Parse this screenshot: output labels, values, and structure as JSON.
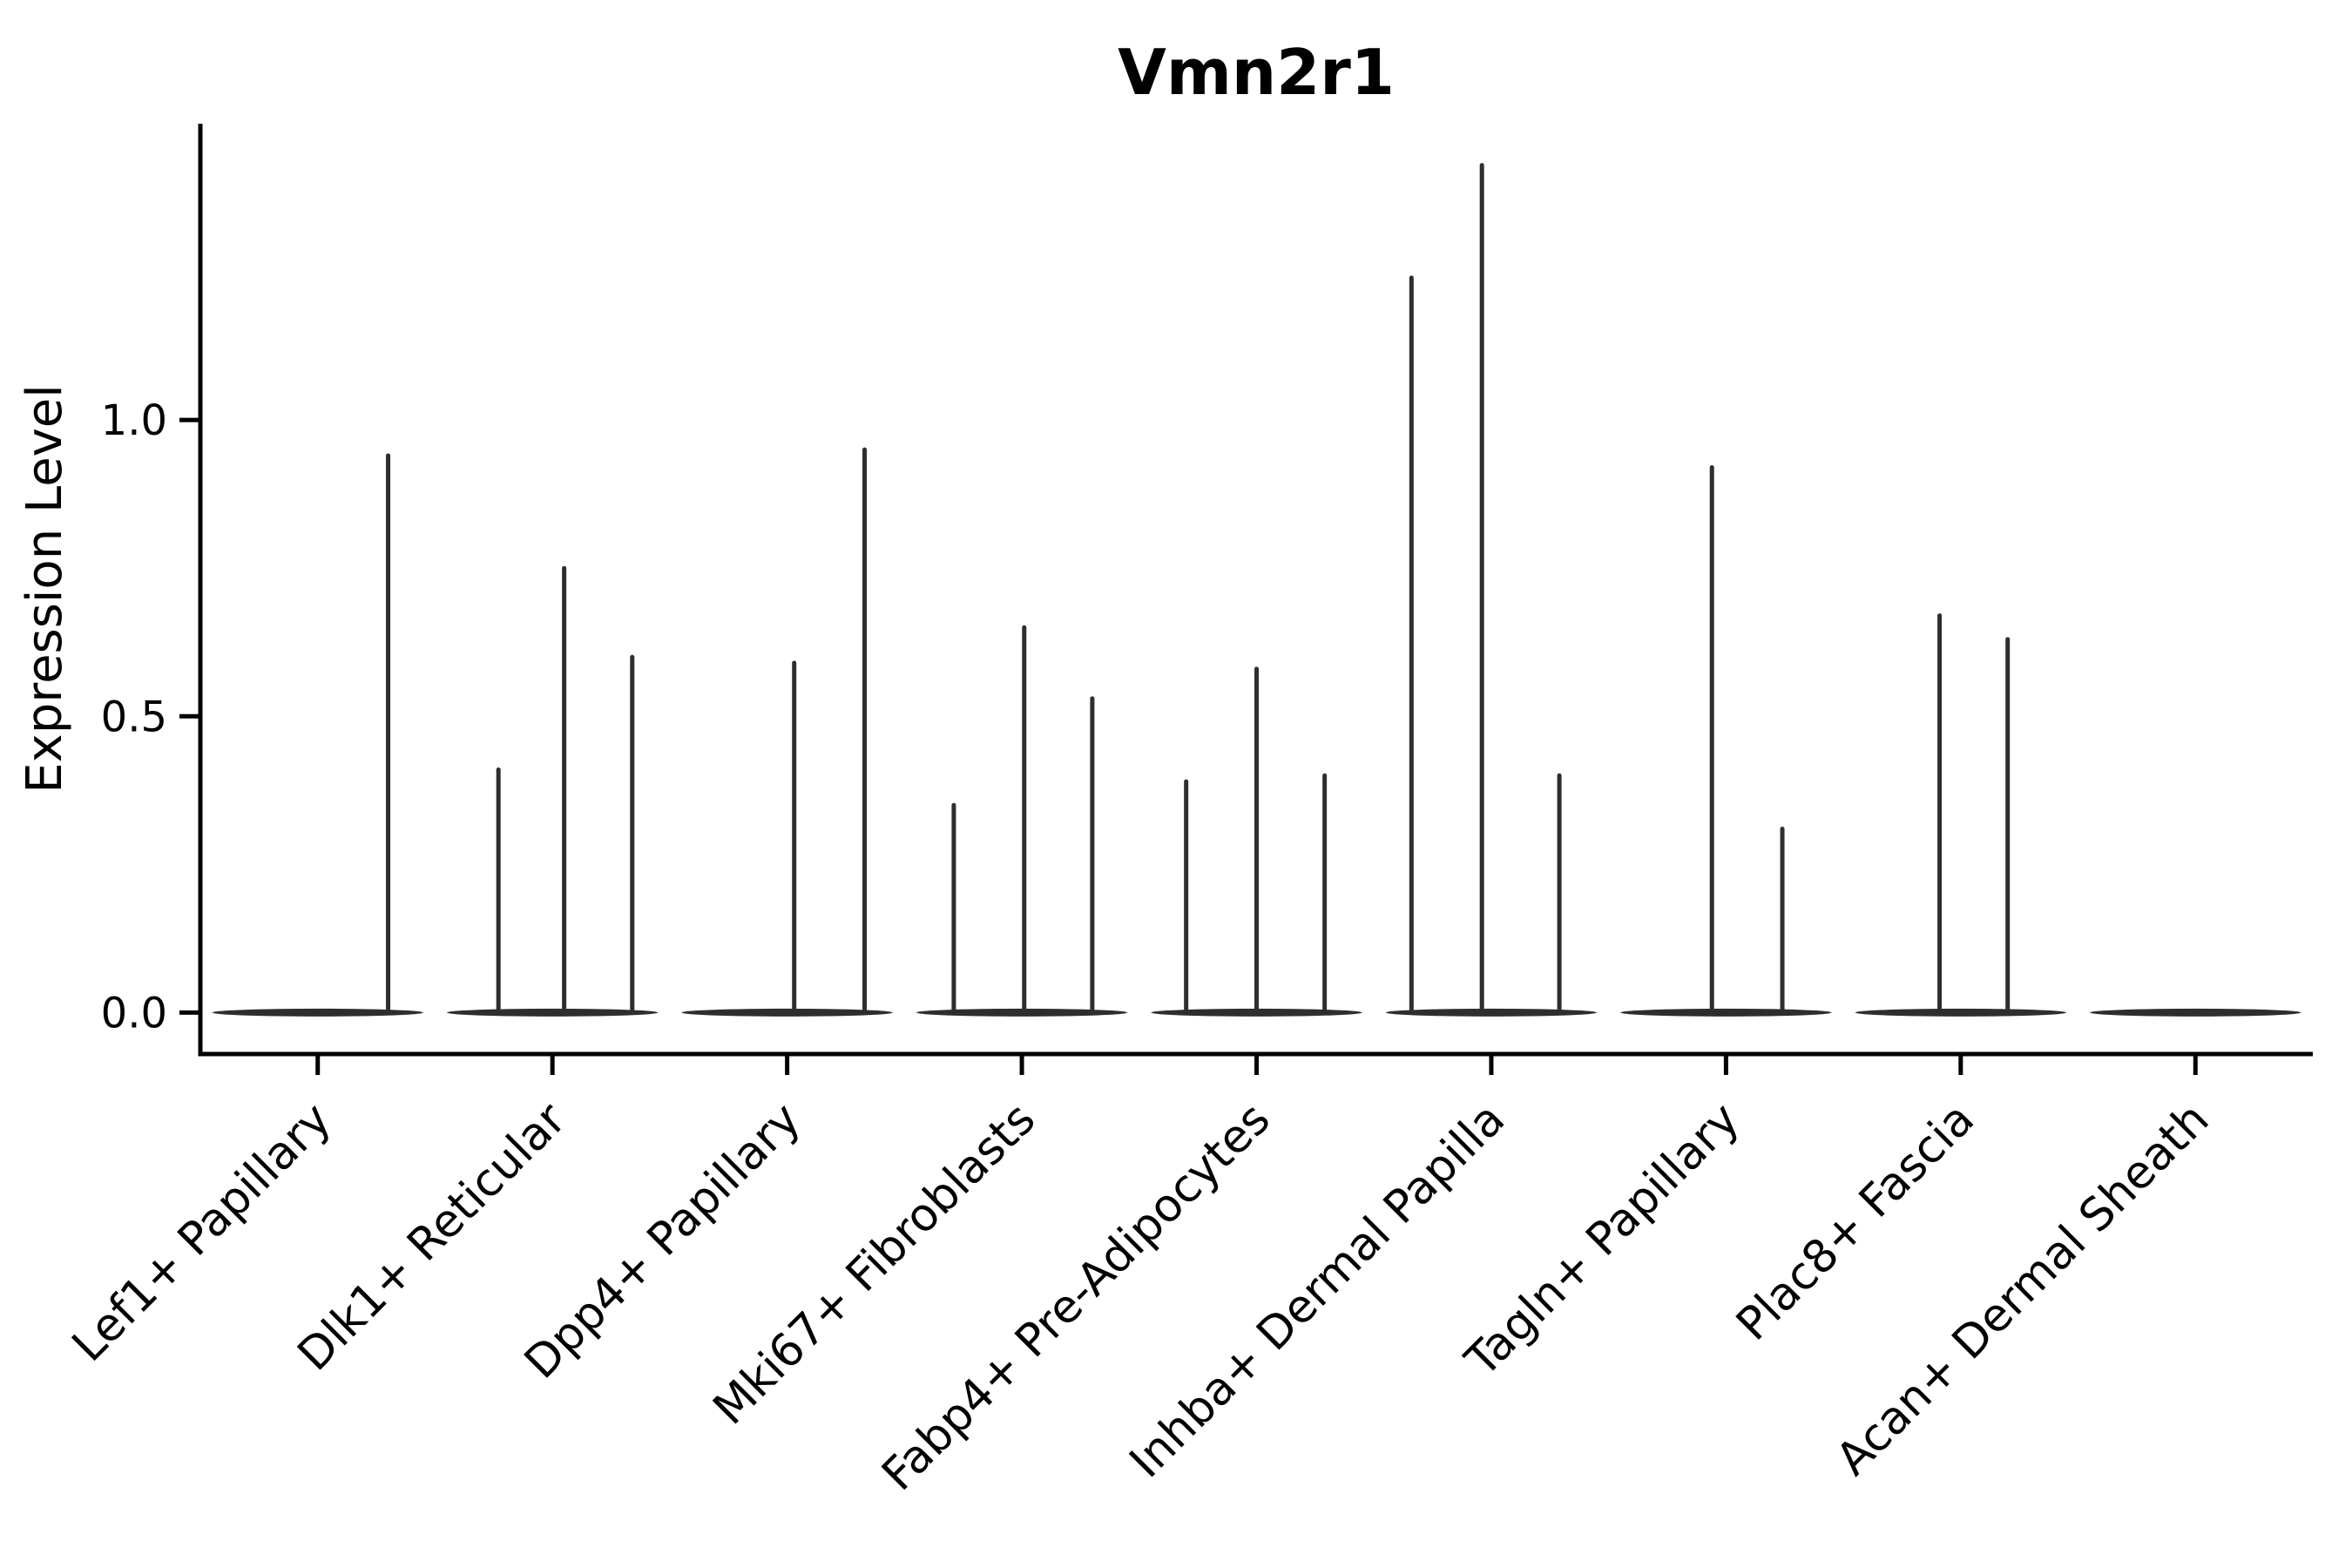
{
  "chart_data": {
    "type": "violin",
    "title": "Vmn2r1",
    "xlabel": "",
    "ylabel": "Expression Level",
    "grid": false,
    "legend": null,
    "background_color": "#ffffff",
    "spine_color": "#000000",
    "violin_color": "#2e2e2e",
    "ylim": [
      -0.07,
      1.5
    ],
    "y_ticks": [
      {
        "value": 0.0,
        "label": "0.0"
      },
      {
        "value": 0.5,
        "label": "0.5"
      },
      {
        "value": 1.0,
        "label": "1.0"
      }
    ],
    "categories": [
      "Lef1+ Papillary",
      "Dlk1+ Reticular",
      "Dpp4+ Papillary",
      "Mki67+ Fibroblasts",
      "Fabp4+ Pre-Adipocytes",
      "Inhba+ Dermal Papilla",
      "Tagln+ Papillary",
      "Plac8+ Fascia",
      "Acan+ Dermal Sheath"
    ],
    "violins": [
      {
        "category": "Lef1+ Papillary",
        "baseline_value": 0.0,
        "spikes": [
          {
            "value": 0.94,
            "offset": 0.3
          }
        ]
      },
      {
        "category": "Dlk1+ Reticular",
        "baseline_value": 0.0,
        "spikes": [
          {
            "value": 0.41,
            "offset": -0.23
          },
          {
            "value": 0.75,
            "offset": 0.05
          },
          {
            "value": 0.6,
            "offset": 0.34
          }
        ]
      },
      {
        "category": "Dpp4+ Papillary",
        "baseline_value": 0.0,
        "spikes": [
          {
            "value": 0.59,
            "offset": 0.03
          },
          {
            "value": 0.95,
            "offset": 0.33
          }
        ]
      },
      {
        "category": "Mki67+ Fibroblasts",
        "baseline_value": 0.0,
        "spikes": [
          {
            "value": 0.35,
            "offset": -0.29
          },
          {
            "value": 0.65,
            "offset": 0.01
          },
          {
            "value": 0.53,
            "offset": 0.3
          }
        ]
      },
      {
        "category": "Fabp4+ Pre-Adipocytes",
        "baseline_value": 0.0,
        "spikes": [
          {
            "value": 0.39,
            "offset": -0.3
          },
          {
            "value": 0.58,
            "offset": 0.0
          },
          {
            "value": 0.4,
            "offset": 0.29
          }
        ]
      },
      {
        "category": "Inhba+ Dermal Papilla",
        "baseline_value": 0.0,
        "spikes": [
          {
            "value": 1.24,
            "offset": -0.34
          },
          {
            "value": 1.43,
            "offset": -0.04
          },
          {
            "value": 0.4,
            "offset": 0.29
          }
        ]
      },
      {
        "category": "Tagln+ Papillary",
        "baseline_value": 0.0,
        "spikes": [
          {
            "value": 0.92,
            "offset": -0.06
          },
          {
            "value": 0.31,
            "offset": 0.24
          }
        ]
      },
      {
        "category": "Plac8+ Fascia",
        "baseline_value": 0.0,
        "spikes": [
          {
            "value": 0.67,
            "offset": -0.09
          },
          {
            "value": 0.63,
            "offset": 0.2
          }
        ]
      },
      {
        "category": "Acan+ Dermal Sheath",
        "baseline_value": 0.0,
        "spikes": []
      }
    ]
  }
}
